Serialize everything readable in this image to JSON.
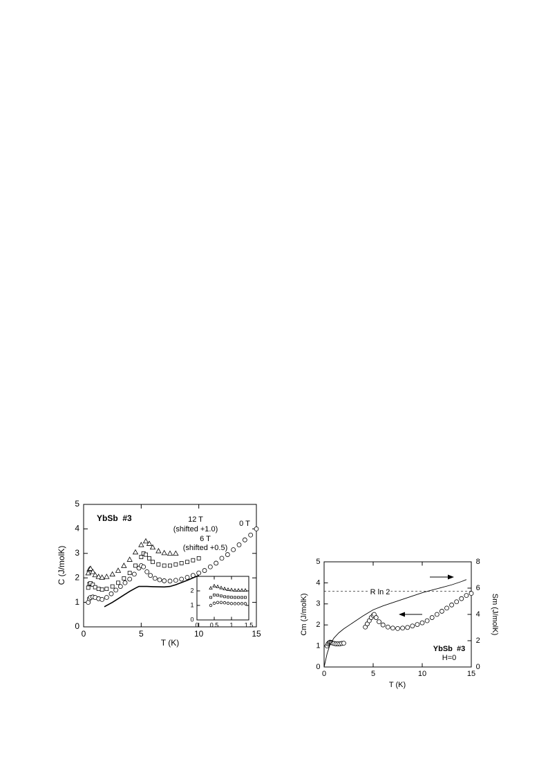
{
  "chart_data": [
    {
      "type": "scatter",
      "xlabel": "T (K)",
      "ylabel": "C (J/molK)",
      "xlim": [
        0,
        15
      ],
      "ylim": [
        0,
        5
      ],
      "xticks": [
        0,
        5,
        10,
        15
      ],
      "yticks": [
        0,
        1,
        2,
        3,
        4,
        5
      ],
      "annotations": [
        "YbSb  #3",
        "12 T",
        "(shifted +1.0)",
        "6 T",
        "(shifted +0.5)",
        "0 T"
      ],
      "series": [
        {
          "marker": "circle",
          "color": "#000000",
          "x": [
            0.4,
            0.5,
            0.6,
            0.8,
            1.0,
            1.3,
            1.6,
            2.0,
            2.4,
            2.8,
            3.2,
            3.6,
            4.0,
            4.4,
            4.8,
            5.0,
            5.2,
            5.5,
            5.8,
            6.2,
            6.6,
            7.0,
            7.5,
            8.0,
            8.5,
            9.0,
            9.5,
            10.0,
            10.5,
            11.0,
            11.5,
            12.0,
            12.5,
            13.0,
            13.5,
            14.0,
            14.5,
            15.0
          ],
          "values": [
            1.0,
            1.15,
            1.2,
            1.22,
            1.2,
            1.15,
            1.12,
            1.2,
            1.35,
            1.5,
            1.65,
            1.8,
            1.95,
            2.15,
            2.4,
            2.5,
            2.45,
            2.25,
            2.1,
            1.98,
            1.92,
            1.88,
            1.87,
            1.9,
            1.95,
            2.02,
            2.1,
            2.2,
            2.3,
            2.45,
            2.6,
            2.8,
            2.95,
            3.15,
            3.35,
            3.55,
            3.75,
            4.0
          ]
        },
        {
          "marker": "square",
          "color": "#000000",
          "x": [
            0.4,
            0.5,
            0.6,
            0.8,
            1.0,
            1.3,
            1.6,
            2.0,
            2.5,
            3.0,
            3.5,
            4.0,
            4.5,
            5.0,
            5.2,
            5.4,
            5.7,
            6.0,
            6.5,
            7.0,
            7.5,
            8.0,
            8.5,
            9.0,
            9.5,
            10.0
          ],
          "values": [
            1.6,
            1.75,
            1.78,
            1.72,
            1.62,
            1.55,
            1.52,
            1.55,
            1.65,
            1.8,
            1.98,
            2.2,
            2.5,
            2.85,
            3.0,
            2.95,
            2.8,
            2.65,
            2.55,
            2.5,
            2.5,
            2.55,
            2.6,
            2.65,
            2.72,
            2.8
          ]
        },
        {
          "marker": "triangle",
          "color": "#000000",
          "x": [
            0.4,
            0.5,
            0.6,
            0.8,
            1.0,
            1.3,
            1.6,
            2.0,
            2.5,
            3.0,
            3.5,
            4.0,
            4.5,
            5.0,
            5.4,
            5.7,
            6.0,
            6.5,
            7.0,
            7.5,
            8.0
          ],
          "values": [
            2.2,
            2.35,
            2.38,
            2.25,
            2.12,
            2.05,
            2.02,
            2.05,
            2.15,
            2.3,
            2.5,
            2.75,
            3.05,
            3.35,
            3.5,
            3.4,
            3.25,
            3.1,
            3.02,
            3.0,
            3.0
          ]
        },
        {
          "marker": "line",
          "color": "#000000",
          "x": [
            1.8,
            2.5,
            3.0,
            3.5,
            4.0,
            4.5,
            4.8,
            5.5,
            6.0,
            7.0,
            7.5,
            8.0,
            9.0,
            10.0
          ],
          "values": [
            0.82,
            1.0,
            1.15,
            1.3,
            1.45,
            1.58,
            1.65,
            1.65,
            1.64,
            1.63,
            1.65,
            1.72,
            1.9,
            2.1
          ]
        }
      ]
    },
    {
      "type": "scatter",
      "xlim": [
        0,
        1.5
      ],
      "ylim": [
        0,
        3
      ],
      "xticks": [
        0,
        0.5,
        1,
        1.5
      ],
      "yticks": [
        0,
        1,
        2
      ],
      "series": [
        {
          "marker": "circle",
          "color": "#000000",
          "x": [
            0.4,
            0.5,
            0.6,
            0.7,
            0.8,
            0.9,
            1.0,
            1.1,
            1.2,
            1.3,
            1.4
          ],
          "values": [
            1.0,
            1.15,
            1.2,
            1.2,
            1.18,
            1.15,
            1.13,
            1.12,
            1.12,
            1.12,
            1.12
          ]
        },
        {
          "marker": "square",
          "color": "#000000",
          "x": [
            0.4,
            0.5,
            0.6,
            0.7,
            0.8,
            0.9,
            1.0,
            1.1,
            1.2,
            1.3,
            1.4
          ],
          "values": [
            1.55,
            1.72,
            1.7,
            1.65,
            1.6,
            1.58,
            1.56,
            1.55,
            1.55,
            1.55,
            1.55
          ]
        },
        {
          "marker": "triangle",
          "color": "#000000",
          "x": [
            0.4,
            0.5,
            0.6,
            0.7,
            0.8,
            0.9,
            1.0,
            1.1,
            1.2,
            1.3,
            1.4
          ],
          "values": [
            2.2,
            2.35,
            2.3,
            2.22,
            2.15,
            2.1,
            2.08,
            2.05,
            2.05,
            2.05,
            2.05
          ]
        }
      ]
    },
    {
      "type": "scatter",
      "xlabel": "T (K)",
      "ylabel": "Cm (J/molK)",
      "y2label": "Sm (J/molK)",
      "xlim": [
        0,
        15
      ],
      "ylim": [
        0,
        5
      ],
      "y2lim": [
        0,
        8
      ],
      "xticks": [
        0,
        5,
        10,
        15
      ],
      "yticks": [
        0,
        1,
        2,
        3,
        4,
        5
      ],
      "y2ticks": [
        0,
        2,
        4,
        6,
        8
      ],
      "annotations": [
        "YbSb  #3",
        "H=0"
      ],
      "reference_line": {
        "value": 5.76,
        "axis": "y2",
        "label": "R ln 2"
      },
      "series": [
        {
          "marker": "circle",
          "color": "#000000",
          "x": [
            0.3,
            0.4,
            0.5,
            0.6,
            0.7,
            0.8,
            1.0,
            1.2,
            1.4,
            1.6,
            1.8,
            2.0,
            4.2,
            4.4,
            4.6,
            4.8,
            5.0,
            5.1,
            5.3,
            5.6,
            6.0,
            6.5,
            7.0,
            7.5,
            8.0,
            8.5,
            9.0,
            9.5,
            10.0,
            10.5,
            11.0,
            11.5,
            12.0,
            12.5,
            13.0,
            13.5,
            14.0,
            14.5,
            15.0
          ],
          "values": [
            1.0,
            1.1,
            1.15,
            1.18,
            1.17,
            1.15,
            1.12,
            1.1,
            1.1,
            1.1,
            1.12,
            1.13,
            1.9,
            2.05,
            2.2,
            2.35,
            2.45,
            2.5,
            2.35,
            2.15,
            2.0,
            1.9,
            1.85,
            1.83,
            1.85,
            1.88,
            1.95,
            2.02,
            2.1,
            2.2,
            2.35,
            2.5,
            2.65,
            2.8,
            2.95,
            3.1,
            3.25,
            3.4,
            3.5
          ]
        },
        {
          "marker": "line",
          "color": "#000000",
          "axis": "y2",
          "x": [
            0,
            0.3,
            0.6,
            1.0,
            1.5,
            2,
            3,
            4,
            5,
            6,
            7,
            8,
            9,
            10,
            11,
            12,
            13,
            14,
            14.5
          ],
          "values": [
            0,
            1.0,
            1.7,
            2.2,
            2.6,
            2.9,
            3.4,
            3.9,
            4.35,
            4.65,
            4.9,
            5.15,
            5.4,
            5.65,
            5.85,
            6.05,
            6.25,
            6.5,
            6.65
          ]
        }
      ]
    }
  ]
}
